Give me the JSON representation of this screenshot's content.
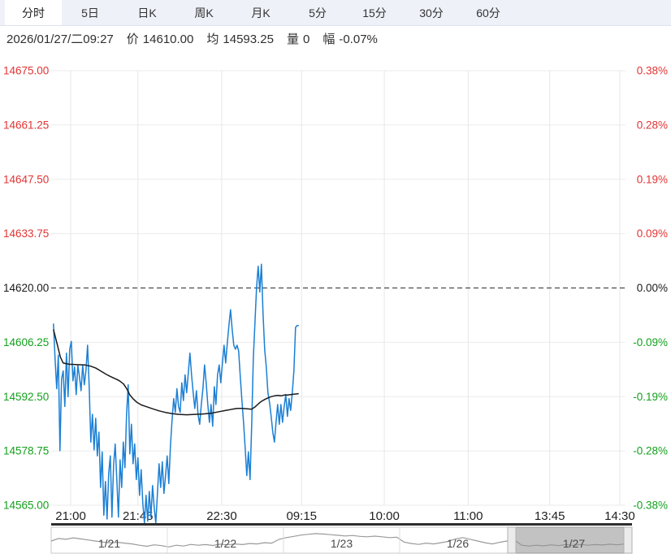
{
  "colors": {
    "up": "#e23434",
    "down": "#14a01e",
    "neutral": "#1a1a1a",
    "price_line": "#1b7fd4",
    "avg_line": "#1a1a1a",
    "grid": "#ebebeb",
    "grid_v": "#e7e7e7",
    "nav_line": "#9a9a9a"
  },
  "toolbar": {
    "tabs": [
      {
        "label": "分时",
        "active": true
      },
      {
        "label": "5日",
        "active": false
      },
      {
        "label": "日K",
        "active": false
      },
      {
        "label": "周K",
        "active": false
      },
      {
        "label": "月K",
        "active": false
      },
      {
        "label": "5分",
        "active": false
      },
      {
        "label": "15分",
        "active": false
      },
      {
        "label": "30分",
        "active": false
      },
      {
        "label": "60分",
        "active": false
      }
    ]
  },
  "info_bar": {
    "datetime": "2026/01/27/二09:27",
    "price_label": "价",
    "price_value": "14610.00",
    "avg_label": "均",
    "avg_value": "14593.25",
    "vol_label": "量",
    "vol_value": "0",
    "chg_label": "幅",
    "chg_value": "-0.07%"
  },
  "chart_data": {
    "type": "line",
    "title": "",
    "xlabel": "",
    "ylabel": "",
    "grid": true,
    "legend": "none",
    "baseline_price": 14620.0,
    "y_left": {
      "min": 14565,
      "max": 14675,
      "labels": [
        "14675.00",
        "14661.25",
        "14647.50",
        "14633.75",
        "14620.00",
        "14606.25",
        "14592.50",
        "14578.75",
        "14565.00"
      ]
    },
    "y_right": {
      "labels": [
        "0.38%",
        "0.28%",
        "0.19%",
        "0.09%",
        "0.00%",
        "-0.09%",
        "-0.19%",
        "-0.28%",
        "-0.38%"
      ]
    },
    "x_ticks": [
      {
        "label": "21:00",
        "f": 0.034
      },
      {
        "label": "21:45",
        "f": 0.151
      },
      {
        "label": "22:30",
        "f": 0.297
      },
      {
        "label": "09:15",
        "f": 0.436
      },
      {
        "label": "10:00",
        "f": 0.58
      },
      {
        "label": "11:00",
        "f": 0.726
      },
      {
        "label": "13:45",
        "f": 0.868
      },
      {
        "label": "14:30",
        "f": 0.99
      }
    ],
    "series": [
      {
        "name": "price",
        "color_key": "price_line",
        "x_start_f": 0.004,
        "x_step_f": 0.002829,
        "values": [
          14611,
          14602,
          14594.5,
          14603,
          14578.8,
          14597,
          14599,
          14590,
          14603.5,
          14592.5,
          14604.5,
          14606.5,
          14596.5,
          14600,
          14593,
          14600.5,
          14597.5,
          14594,
          14600.5,
          14595.5,
          14599,
          14605.5,
          14595,
          14581,
          14588,
          14579,
          14587,
          14577.5,
          14583.5,
          14569.5,
          14578.5,
          14562.5,
          14571,
          14561.5,
          14573,
          14577.5,
          14562,
          14575,
          14580.5,
          14571.5,
          14562,
          14576.5,
          14569.5,
          14581,
          14574.5,
          14588,
          14595.5,
          14578,
          14585.5,
          14575.5,
          14580.5,
          14571.5,
          14577,
          14567.5,
          14574,
          14565.5,
          14560.5,
          14567.5,
          14561,
          14568.5,
          14562,
          14570,
          14564.5,
          14560.5,
          14568,
          14575.5,
          14569.5,
          14576,
          14568,
          14572.5,
          14577.5,
          14570.5,
          14580,
          14586.5,
          14592,
          14588.5,
          14594.5,
          14590,
          14588.5,
          14596,
          14591.5,
          14598,
          14593.5,
          14598.5,
          14603.5,
          14598,
          14593.5,
          14589.5,
          14594,
          14588,
          14585.5,
          14590.5,
          14594.5,
          14600.5,
          14596,
          14590.5,
          14586,
          14590.5,
          14585,
          14595,
          14590.5,
          14598,
          14600.5,
          14596,
          14601,
          14605.5,
          14601,
          14606,
          14610.5,
          14614.5,
          14609.5,
          14605.5,
          14604.5,
          14605.5,
          14604,
          14597.5,
          14591.5,
          14586,
          14579.5,
          14572.5,
          14578.5,
          14571.5,
          14585,
          14602,
          14611,
          14620,
          14625.5,
          14619,
          14626,
          14613.5,
          14604.5,
          14600,
          14593.5,
          14591,
          14587.5,
          14583.5,
          14581,
          14586,
          14590.5,
          14585.5,
          14590.5,
          14586,
          14590,
          14593,
          14587.5,
          14592,
          14589,
          14593.5,
          14599,
          14610,
          14610.5,
          14610.5
        ]
      },
      {
        "name": "average",
        "color_key": "avg_line",
        "points": [
          [
            0.004,
            14609.5
          ],
          [
            0.01,
            14606
          ],
          [
            0.016,
            14602.5
          ],
          [
            0.021,
            14601
          ],
          [
            0.031,
            14600.7
          ],
          [
            0.045,
            14600.6
          ],
          [
            0.059,
            14600.5
          ],
          [
            0.069,
            14600.2
          ],
          [
            0.078,
            14599.7
          ],
          [
            0.086,
            14599
          ],
          [
            0.095,
            14598.2
          ],
          [
            0.103,
            14597.6
          ],
          [
            0.109,
            14597.2
          ],
          [
            0.115,
            14596.8
          ],
          [
            0.12,
            14596.4
          ],
          [
            0.126,
            14595.7
          ],
          [
            0.132,
            14594.4
          ],
          [
            0.137,
            14592.9
          ],
          [
            0.143,
            14591.9
          ],
          [
            0.149,
            14591.1
          ],
          [
            0.157,
            14590.4
          ],
          [
            0.165,
            14590
          ],
          [
            0.177,
            14589.4
          ],
          [
            0.188,
            14588.9
          ],
          [
            0.199,
            14588.5
          ],
          [
            0.211,
            14588.2
          ],
          [
            0.222,
            14588
          ],
          [
            0.236,
            14587.9
          ],
          [
            0.25,
            14588
          ],
          [
            0.265,
            14588.1
          ],
          [
            0.279,
            14588.3
          ],
          [
            0.293,
            14588.7
          ],
          [
            0.304,
            14589
          ],
          [
            0.315,
            14589.3
          ],
          [
            0.324,
            14589.5
          ],
          [
            0.332,
            14589.5
          ],
          [
            0.341,
            14589.4
          ],
          [
            0.349,
            14589.3
          ],
          [
            0.355,
            14589.9
          ],
          [
            0.361,
            14590.7
          ],
          [
            0.366,
            14591.3
          ],
          [
            0.372,
            14591.8
          ],
          [
            0.378,
            14592.2
          ],
          [
            0.383,
            14592.5
          ],
          [
            0.389,
            14592.7
          ],
          [
            0.395,
            14592.8
          ],
          [
            0.4,
            14592.7
          ],
          [
            0.406,
            14592.9
          ],
          [
            0.412,
            14592.9
          ],
          [
            0.417,
            14593
          ],
          [
            0.423,
            14593.1
          ],
          [
            0.431,
            14593.25
          ]
        ]
      }
    ]
  },
  "navigator": {
    "dates": [
      "1/21",
      "1/22",
      "1/23",
      "1/26",
      "1/27"
    ],
    "selected": "1/27",
    "values": [
      50,
      62,
      58,
      65,
      60,
      55,
      50,
      45,
      42,
      44,
      40,
      36,
      30,
      25,
      32,
      28,
      22,
      30,
      26,
      34,
      30,
      33,
      29,
      35,
      32,
      36,
      33,
      38,
      36,
      42,
      40,
      58,
      66,
      72,
      78,
      82,
      85,
      83,
      80,
      77,
      74,
      76,
      72,
      70,
      73,
      70,
      66,
      68,
      45,
      38,
      34,
      40,
      36,
      42,
      48,
      60,
      66,
      58,
      50,
      42,
      36,
      44,
      50,
      55,
      30,
      26,
      30,
      27,
      32,
      28,
      33,
      29,
      34,
      30,
      33,
      31,
      35,
      32,
      36,
      34
    ]
  }
}
